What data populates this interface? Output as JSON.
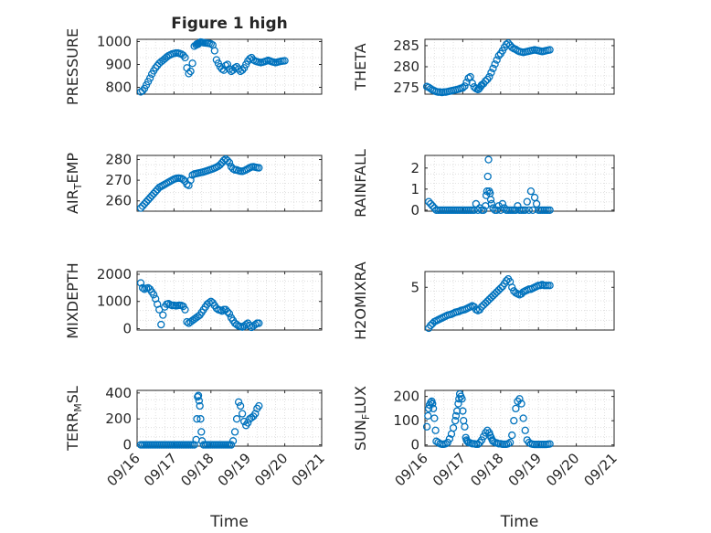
{
  "chart_data": [
    {
      "type": "scatter",
      "title": "Figure 1 high",
      "ylabel": "PRESSURE",
      "ylim": [
        770,
        1010
      ],
      "yticks": [
        800,
        900,
        1000
      ],
      "ytick_labels": [
        "800",
        "900",
        "1000"
      ],
      "xlim": [
        0,
        5
      ],
      "x": [
        0.1,
        0.15,
        0.2,
        0.25,
        0.3,
        0.35,
        0.4,
        0.45,
        0.5,
        0.55,
        0.6,
        0.65,
        0.7,
        0.75,
        0.8,
        0.85,
        0.9,
        0.95,
        1.0,
        1.05,
        1.1,
        1.15,
        1.2,
        1.25,
        1.3,
        1.35,
        1.4,
        1.45,
        1.5,
        1.55,
        1.6,
        1.62,
        1.65,
        1.67,
        1.7,
        1.72,
        1.75,
        1.78,
        1.8,
        1.85,
        1.9,
        1.95,
        2.0,
        2.05,
        2.1,
        2.15,
        2.2,
        2.25,
        2.3,
        2.35,
        2.4,
        2.45,
        2.5,
        2.55,
        2.6,
        2.65,
        2.7,
        2.75,
        2.8,
        2.85,
        2.9,
        2.95,
        3.0,
        3.05,
        3.1,
        3.15,
        3.2,
        3.25,
        3.3,
        3.35,
        3.4,
        3.45,
        3.5,
        3.55,
        3.6,
        3.65,
        3.7,
        3.75,
        3.8,
        3.85,
        3.9,
        3.95,
        4.0
      ],
      "y": [
        780,
        785,
        795,
        810,
        825,
        840,
        858,
        872,
        885,
        895,
        905,
        912,
        918,
        925,
        932,
        938,
        942,
        946,
        948,
        950,
        950,
        948,
        945,
        940,
        930,
        885,
        860,
        870,
        905,
        980,
        985,
        990,
        988,
        992,
        995,
        998,
        997,
        996,
        995,
        994,
        993,
        992,
        990,
        985,
        960,
        920,
        905,
        890,
        880,
        875,
        895,
        900,
        880,
        870,
        875,
        885,
        890,
        880,
        870,
        875,
        885,
        900,
        915,
        925,
        930,
        920,
        915,
        912,
        910,
        908,
        910,
        912,
        915,
        918,
        915,
        912,
        910,
        908,
        910,
        912,
        914,
        915,
        916
      ],
      "points_color": "#0072BD"
    },
    {
      "type": "scatter",
      "title": "",
      "ylabel": "THETA",
      "ylim": [
        273.5,
        286.5
      ],
      "yticks": [
        275,
        280,
        285
      ],
      "ytick_labels": [
        "275",
        "280",
        "285"
      ],
      "xlim": [
        0,
        5
      ],
      "x": [
        0.05,
        0.1,
        0.15,
        0.2,
        0.25,
        0.3,
        0.35,
        0.4,
        0.45,
        0.5,
        0.55,
        0.6,
        0.65,
        0.7,
        0.75,
        0.8,
        0.85,
        0.9,
        0.95,
        1.0,
        1.05,
        1.1,
        1.15,
        1.2,
        1.25,
        1.3,
        1.35,
        1.4,
        1.42,
        1.45,
        1.48,
        1.5,
        1.55,
        1.6,
        1.65,
        1.7,
        1.75,
        1.8,
        1.85,
        1.9,
        1.95,
        2.0,
        2.05,
        2.1,
        2.15,
        2.2,
        2.25,
        2.3,
        2.35,
        2.4,
        2.45,
        2.5,
        2.55,
        2.6,
        2.65,
        2.7,
        2.75,
        2.8,
        2.85,
        2.9,
        2.95,
        3.0,
        3.05,
        3.1,
        3.15,
        3.2,
        3.25,
        3.3
      ],
      "y": [
        275.3,
        275.1,
        274.8,
        274.5,
        274.3,
        274.1,
        274.0,
        274.0,
        273.9,
        274.0,
        274.0,
        274.1,
        274.2,
        274.3,
        274.4,
        274.5,
        274.6,
        274.7,
        274.9,
        275.0,
        275.4,
        276.3,
        277.3,
        277.6,
        276.1,
        275.2,
        274.8,
        274.6,
        274.7,
        275.0,
        275.4,
        275.7,
        276.0,
        276.6,
        277.0,
        277.6,
        278.6,
        279.6,
        280.6,
        281.6,
        282.6,
        283.1,
        283.8,
        284.6,
        285.3,
        285.6,
        285.1,
        284.6,
        284.3,
        284.1,
        283.8,
        283.6,
        283.5,
        283.4,
        283.5,
        283.6,
        283.7,
        283.8,
        283.9,
        284.0,
        283.9,
        283.8,
        283.7,
        283.6,
        283.7,
        283.8,
        283.9,
        284.0
      ],
      "points_color": "#0072BD"
    },
    {
      "type": "scatter",
      "title": "",
      "ylabel": "AIR_TEMP",
      "ylabel_main": "AIR",
      "ylabel_sub": "T",
      "ylabel_rest": "EMP",
      "ylim": [
        255,
        282
      ],
      "yticks": [
        260,
        270,
        280
      ],
      "ytick_labels": [
        "260",
        "270",
        "280"
      ],
      "xlim": [
        0,
        5
      ],
      "x": [
        0.1,
        0.15,
        0.2,
        0.25,
        0.3,
        0.35,
        0.4,
        0.45,
        0.5,
        0.55,
        0.6,
        0.65,
        0.7,
        0.75,
        0.8,
        0.85,
        0.9,
        0.95,
        1.0,
        1.05,
        1.1,
        1.15,
        1.2,
        1.25,
        1.3,
        1.35,
        1.4,
        1.45,
        1.5,
        1.55,
        1.6,
        1.65,
        1.7,
        1.75,
        1.8,
        1.85,
        1.9,
        1.95,
        2.0,
        2.05,
        2.1,
        2.15,
        2.2,
        2.25,
        2.3,
        2.35,
        2.4,
        2.45,
        2.5,
        2.55,
        2.6,
        2.65,
        2.7,
        2.75,
        2.8,
        2.85,
        2.9,
        2.95,
        3.0,
        3.05,
        3.1,
        3.15,
        3.2,
        3.25,
        3.3
      ],
      "y": [
        256.5,
        257.5,
        258.5,
        259.5,
        260.5,
        261.5,
        262.5,
        263.5,
        264.5,
        265.5,
        266.5,
        267.0,
        267.5,
        268.0,
        268.5,
        269.0,
        269.5,
        270.0,
        270.5,
        270.8,
        271.0,
        271.0,
        270.8,
        270.3,
        269.5,
        268.0,
        267.5,
        270.0,
        272.5,
        273.0,
        273.2,
        273.4,
        273.6,
        273.8,
        274.0,
        274.3,
        274.6,
        274.9,
        275.2,
        275.5,
        275.9,
        276.3,
        276.8,
        277.5,
        278.5,
        279.6,
        280.2,
        279.5,
        278.5,
        276.5,
        275.5,
        275.0,
        275.0,
        274.6,
        274.4,
        274.3,
        274.6,
        275.0,
        275.5,
        276.0,
        276.4,
        276.5,
        276.3,
        276.1,
        276.0
      ],
      "points_color": "#0072BD"
    },
    {
      "type": "scatter",
      "title": "",
      "ylabel": "RAINFALL",
      "ylim": [
        -0.05,
        2.6
      ],
      "yticks": [
        0,
        1,
        2
      ],
      "ytick_labels": [
        "0",
        "1",
        "2"
      ],
      "xlim": [
        0,
        5
      ],
      "x": [
        0.1,
        0.15,
        0.2,
        0.25,
        0.3,
        0.35,
        0.4,
        0.45,
        0.5,
        0.55,
        0.6,
        0.65,
        0.7,
        0.75,
        0.8,
        0.85,
        0.9,
        0.95,
        1.0,
        1.05,
        1.1,
        1.15,
        1.2,
        1.25,
        1.3,
        1.35,
        1.4,
        1.45,
        1.5,
        1.55,
        1.6,
        1.62,
        1.64,
        1.66,
        1.68,
        1.7,
        1.72,
        1.74,
        1.76,
        1.8,
        1.85,
        1.9,
        1.95,
        2.0,
        2.05,
        2.1,
        2.15,
        2.2,
        2.25,
        2.3,
        2.35,
        2.4,
        2.45,
        2.5,
        2.55,
        2.6,
        2.65,
        2.7,
        2.75,
        2.8,
        2.85,
        2.9,
        2.95,
        3.0,
        3.05,
        3.1,
        3.15,
        3.2,
        3.25,
        3.3
      ],
      "y": [
        0.4,
        0.3,
        0.2,
        0.1,
        0.0,
        0.0,
        0.0,
        0.0,
        0.0,
        0.0,
        0.0,
        0.0,
        0.0,
        0.0,
        0.0,
        0.0,
        0.0,
        0.0,
        0.0,
        0.0,
        0.0,
        0.0,
        0.0,
        0.0,
        0.0,
        0.3,
        0.0,
        0.1,
        0.0,
        0.0,
        0.2,
        0.7,
        0.9,
        1.6,
        2.4,
        0.9,
        0.8,
        0.5,
        0.3,
        0.1,
        0.0,
        0.0,
        0.2,
        0.0,
        0.3,
        0.1,
        0.0,
        0.0,
        0.0,
        0.0,
        0.0,
        0.0,
        0.2,
        0.0,
        0.0,
        0.0,
        0.0,
        0.4,
        0.0,
        0.9,
        0.0,
        0.6,
        0.3,
        0.0,
        0.0,
        0.0,
        0.0,
        0.0,
        0.0,
        0.0
      ],
      "points_color": "#0072BD"
    },
    {
      "type": "scatter",
      "title": "",
      "ylabel": "MIXDEPTH",
      "ylim": [
        -50,
        2100
      ],
      "yticks": [
        0,
        1000,
        2000
      ],
      "ytick_labels": [
        "0",
        "1000",
        "2000"
      ],
      "xlim": [
        0,
        5
      ],
      "x": [
        0.1,
        0.15,
        0.2,
        0.25,
        0.3,
        0.35,
        0.4,
        0.45,
        0.5,
        0.55,
        0.6,
        0.65,
        0.7,
        0.75,
        0.8,
        0.85,
        0.9,
        0.95,
        1.0,
        1.05,
        1.1,
        1.15,
        1.2,
        1.25,
        1.3,
        1.35,
        1.4,
        1.45,
        1.5,
        1.55,
        1.6,
        1.65,
        1.7,
        1.75,
        1.8,
        1.85,
        1.9,
        1.95,
        2.0,
        2.05,
        2.1,
        2.15,
        2.2,
        2.25,
        2.3,
        2.35,
        2.4,
        2.45,
        2.5,
        2.55,
        2.6,
        2.65,
        2.7,
        2.75,
        2.8,
        2.85,
        2.9,
        2.95,
        3.0,
        3.05,
        3.1,
        3.15,
        3.2,
        3.25,
        3.3
      ],
      "y": [
        1680,
        1500,
        1450,
        1480,
        1500,
        1450,
        1350,
        1250,
        1100,
        900,
        700,
        150,
        500,
        800,
        900,
        920,
        880,
        850,
        860,
        840,
        850,
        860,
        850,
        820,
        700,
        250,
        200,
        250,
        300,
        350,
        400,
        450,
        500,
        600,
        700,
        800,
        900,
        950,
        1000,
        950,
        850,
        750,
        700,
        680,
        650,
        700,
        700,
        620,
        550,
        400,
        300,
        200,
        150,
        100,
        80,
        60,
        100,
        150,
        200,
        120,
        50,
        100,
        150,
        200,
        200
      ],
      "points_color": "#0072BD"
    },
    {
      "type": "scatter",
      "title": "",
      "ylabel": "H2OMIXRA",
      "ylim": [
        0.4,
        6.7
      ],
      "yticks": [
        5
      ],
      "ytick_labels": [
        "5"
      ],
      "xlim": [
        0,
        5
      ],
      "x": [
        0.1,
        0.15,
        0.2,
        0.25,
        0.3,
        0.35,
        0.4,
        0.45,
        0.5,
        0.55,
        0.6,
        0.65,
        0.7,
        0.75,
        0.8,
        0.85,
        0.9,
        0.95,
        1.0,
        1.05,
        1.1,
        1.15,
        1.2,
        1.25,
        1.3,
        1.35,
        1.4,
        1.45,
        1.5,
        1.55,
        1.6,
        1.65,
        1.7,
        1.75,
        1.8,
        1.85,
        1.9,
        1.95,
        2.0,
        2.05,
        2.1,
        2.15,
        2.2,
        2.25,
        2.3,
        2.35,
        2.4,
        2.45,
        2.5,
        2.55,
        2.6,
        2.65,
        2.7,
        2.75,
        2.8,
        2.85,
        2.9,
        2.95,
        3.0,
        3.05,
        3.1,
        3.15,
        3.2,
        3.25,
        3.3
      ],
      "y": [
        0.6,
        0.9,
        1.1,
        1.3,
        1.4,
        1.5,
        1.6,
        1.7,
        1.8,
        1.9,
        2.0,
        2.05,
        2.1,
        2.2,
        2.3,
        2.35,
        2.4,
        2.5,
        2.55,
        2.6,
        2.7,
        2.8,
        2.9,
        3.0,
        2.9,
        2.6,
        2.5,
        2.6,
        2.9,
        3.1,
        3.3,
        3.5,
        3.7,
        3.9,
        4.1,
        4.3,
        4.5,
        4.7,
        4.9,
        5.1,
        5.4,
        5.7,
        5.9,
        5.6,
        5.0,
        4.6,
        4.4,
        4.3,
        4.2,
        4.3,
        4.5,
        4.6,
        4.7,
        4.8,
        4.8,
        4.9,
        5.0,
        5.1,
        5.2,
        5.2,
        5.3,
        5.2,
        5.2,
        5.2,
        5.2
      ],
      "points_color": "#0072BD"
    },
    {
      "type": "scatter",
      "title": "",
      "ylabel": "TERR_MSL",
      "ylabel_main": "TERR",
      "ylabel_sub": "M",
      "ylabel_rest": "SL",
      "ylim": [
        -10,
        420
      ],
      "yticks": [
        0,
        200,
        400
      ],
      "ytick_labels": [
        "0",
        "200",
        "400"
      ],
      "xlim": [
        0,
        5
      ],
      "xticks": [
        0,
        1,
        2,
        3,
        4,
        5
      ],
      "xtick_labels": [
        "09/16",
        "09/17",
        "09/18",
        "09/19",
        "09/20",
        "09/21"
      ],
      "xlabel": "Time",
      "x": [
        0.1,
        0.15,
        0.2,
        0.25,
        0.3,
        0.35,
        0.4,
        0.45,
        0.5,
        0.55,
        0.6,
        0.65,
        0.7,
        0.75,
        0.8,
        0.85,
        0.9,
        0.95,
        1.0,
        1.05,
        1.1,
        1.15,
        1.2,
        1.25,
        1.3,
        1.35,
        1.4,
        1.45,
        1.5,
        1.55,
        1.6,
        1.62,
        1.64,
        1.66,
        1.68,
        1.7,
        1.72,
        1.74,
        1.76,
        1.8,
        1.85,
        1.9,
        1.95,
        2.0,
        2.05,
        2.1,
        2.15,
        2.2,
        2.25,
        2.3,
        2.35,
        2.4,
        2.45,
        2.5,
        2.55,
        2.6,
        2.65,
        2.7,
        2.75,
        2.8,
        2.85,
        2.9,
        2.95,
        3.0,
        3.05,
        3.1,
        3.15,
        3.2,
        3.25,
        3.3
      ],
      "y": [
        0,
        0,
        0,
        0,
        0,
        0,
        0,
        0,
        0,
        0,
        0,
        0,
        0,
        0,
        0,
        0,
        0,
        0,
        0,
        0,
        0,
        0,
        0,
        0,
        0,
        0,
        0,
        0,
        0,
        0,
        40,
        200,
        370,
        380,
        340,
        300,
        200,
        100,
        30,
        0,
        0,
        0,
        0,
        0,
        0,
        0,
        0,
        0,
        0,
        0,
        0,
        0,
        0,
        0,
        0,
        30,
        100,
        200,
        330,
        300,
        240,
        180,
        150,
        170,
        200,
        210,
        220,
        240,
        280,
        300
      ],
      "points_color": "#0072BD"
    },
    {
      "type": "scatter",
      "title": "",
      "ylabel": "SUN_FLUX",
      "ylabel_main": "SUN",
      "ylabel_sub": "F",
      "ylabel_rest": "LUX",
      "ylim": [
        -5,
        225
      ],
      "yticks": [
        0,
        100,
        200
      ],
      "ytick_labels": [
        "0",
        "100",
        "200"
      ],
      "xlim": [
        0,
        5
      ],
      "xticks": [
        0,
        1,
        2,
        3,
        4,
        5
      ],
      "xtick_labels": [
        "09/16",
        "09/17",
        "09/18",
        "09/19",
        "09/20",
        "09/21"
      ],
      "xlabel": "Time",
      "x": [
        0.05,
        0.08,
        0.1,
        0.12,
        0.15,
        0.18,
        0.2,
        0.22,
        0.25,
        0.28,
        0.3,
        0.35,
        0.4,
        0.45,
        0.5,
        0.55,
        0.6,
        0.65,
        0.7,
        0.75,
        0.8,
        0.82,
        0.85,
        0.88,
        0.9,
        0.92,
        0.95,
        0.98,
        1.0,
        1.02,
        1.05,
        1.08,
        1.1,
        1.12,
        1.15,
        1.2,
        1.25,
        1.3,
        1.35,
        1.4,
        1.45,
        1.5,
        1.55,
        1.6,
        1.65,
        1.7,
        1.72,
        1.75,
        1.78,
        1.8,
        1.85,
        1.9,
        1.95,
        2.0,
        2.05,
        2.1,
        2.15,
        2.2,
        2.25,
        2.3,
        2.35,
        2.4,
        2.45,
        2.5,
        2.55,
        2.6,
        2.65,
        2.7,
        2.75,
        2.8,
        2.85,
        2.9,
        2.95,
        3.0,
        3.05,
        3.1,
        3.15,
        3.2,
        3.25,
        3.3
      ],
      "y": [
        75,
        120,
        150,
        165,
        175,
        180,
        170,
        150,
        110,
        60,
        15,
        10,
        5,
        3,
        3,
        5,
        10,
        25,
        45,
        70,
        100,
        120,
        140,
        170,
        190,
        210,
        200,
        190,
        140,
        100,
        75,
        30,
        20,
        15,
        10,
        8,
        5,
        5,
        3,
        3,
        10,
        20,
        35,
        50,
        60,
        50,
        40,
        30,
        20,
        15,
        10,
        8,
        5,
        5,
        3,
        3,
        3,
        5,
        10,
        40,
        100,
        150,
        180,
        190,
        170,
        110,
        60,
        20,
        10,
        5,
        3,
        2,
        2,
        2,
        2,
        2,
        2,
        2,
        3,
        4
      ],
      "points_color": "#0072BD"
    }
  ]
}
